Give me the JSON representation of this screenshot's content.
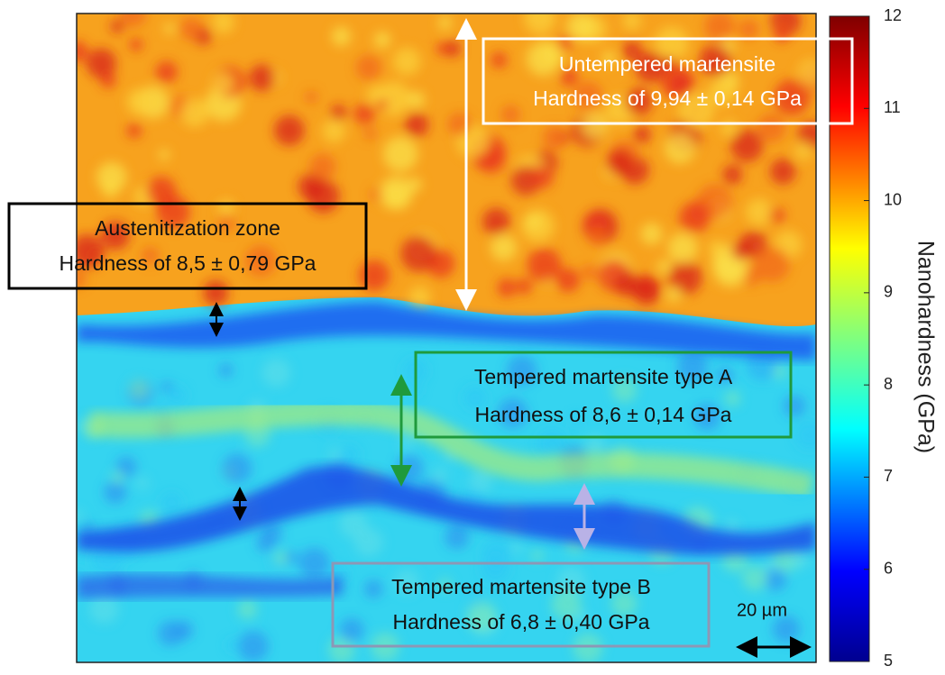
{
  "colorbar": {
    "label": "Nanohardness (GPa)",
    "lim": [
      5,
      12
    ],
    "ticks": [
      5,
      6,
      7,
      8,
      9,
      10,
      11,
      12
    ]
  },
  "annotations": [
    {
      "lines": [
        "Untempered martensite",
        "Hardness of 9,94 ± 0,14 GPa"
      ]
    },
    {
      "lines": [
        "Austenitization zone",
        "Hardness of 8,5 ± 0,79 GPa"
      ]
    },
    {
      "lines": [
        "Tempered martensite type A",
        "Hardness of 8,6 ± 0,14  GPa"
      ]
    },
    {
      "lines": [
        "Tempered martensite type B",
        "Hardness of 6,8 ± 0,40 GPa"
      ]
    }
  ],
  "scale_bar": "20 µm"
}
